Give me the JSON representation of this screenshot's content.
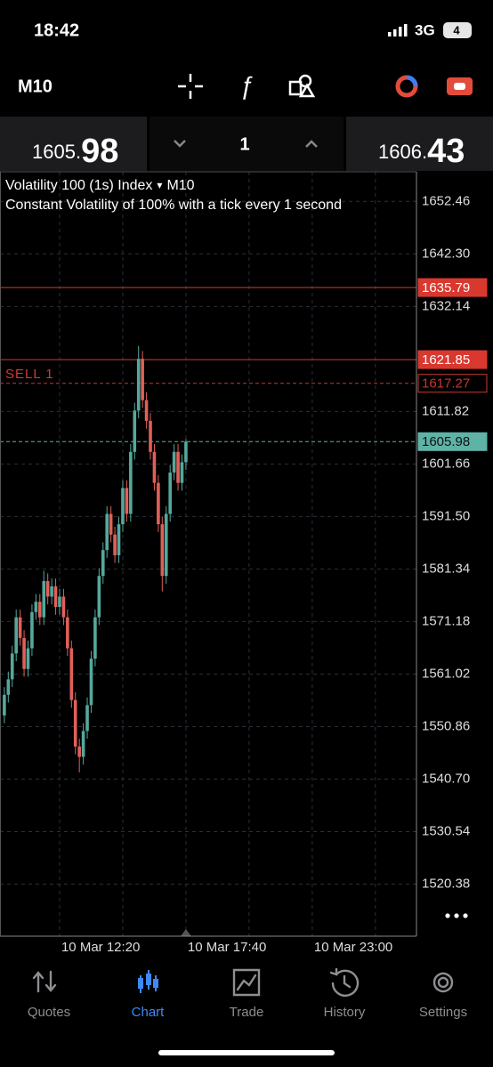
{
  "status_bar": {
    "time": "18:42",
    "network": "3G",
    "battery": "4"
  },
  "toolbar": {
    "timeframe": "M10"
  },
  "price_bar": {
    "bid_prefix": "1605.",
    "bid_suffix": "98",
    "volume": "1",
    "ask_prefix": "1606.",
    "ask_suffix": "43"
  },
  "chart_data": {
    "type": "candlestick",
    "title": "Volatility 100 (1s) Index",
    "title_marker": "▾",
    "timeframe": "M10",
    "subtitle": "Constant Volatility of 100% with a tick every 1 second",
    "up_color": "#55a89b",
    "down_color": "#e0605a",
    "open": [
      1553,
      1557,
      1560,
      1565,
      1572,
      1568,
      1562,
      1566,
      1573,
      1575,
      1572,
      1579,
      1576,
      1578,
      1574,
      1576,
      1572,
      1566,
      1556,
      1547,
      1545,
      1550,
      1555,
      1564,
      1572,
      1580,
      1585,
      1592,
      1588,
      1584,
      1590,
      1597,
      1592,
      1604,
      1612,
      1622,
      1614,
      1610,
      1604,
      1598,
      1590,
      1580,
      1592,
      1600,
      1604,
      1598,
      1602
    ],
    "high": [
      1558.5,
      1561.5,
      1566.5,
      1573.5,
      1573.5,
      1569.5,
      1567.5,
      1574.5,
      1576.5,
      1576.5,
      1581,
      1580.5,
      1579.5,
      1579.5,
      1577.5,
      1577.5,
      1573.5,
      1567.5,
      1557.5,
      1548.5,
      1551.5,
      1556.5,
      1565.5,
      1573.5,
      1581.5,
      1586.5,
      1593.5,
      1593.5,
      1589.5,
      1591.5,
      1598.5,
      1598.5,
      1605.5,
      1613.5,
      1624.5,
      1623.5,
      1615.5,
      1611.5,
      1605.5,
      1599.5,
      1591.5,
      1593.5,
      1601.5,
      1605.5,
      1605.5,
      1603.5,
      1606.5
    ],
    "low": [
      1551.5,
      1555.5,
      1558.5,
      1563.5,
      1566.5,
      1560.5,
      1560.5,
      1564.5,
      1571.5,
      1570.5,
      1570.5,
      1574.5,
      1574.5,
      1572.5,
      1572.5,
      1570.5,
      1564.5,
      1554.5,
      1545.5,
      1542,
      1543.5,
      1548.5,
      1553.5,
      1562.5,
      1570.5,
      1578.5,
      1583.5,
      1586.5,
      1582.5,
      1582.5,
      1588.5,
      1590.5,
      1590.5,
      1602.5,
      1610.5,
      1612.5,
      1608.5,
      1602.5,
      1596.5,
      1588.5,
      1577,
      1578.5,
      1590.5,
      1598.5,
      1596.5,
      1596.5,
      1600.5
    ],
    "close": [
      1557,
      1560,
      1565,
      1572,
      1568,
      1562,
      1566,
      1573,
      1575,
      1572,
      1579,
      1576,
      1578,
      1574,
      1576,
      1572,
      1566,
      1556,
      1547,
      1545,
      1550,
      1555,
      1564,
      1572,
      1580,
      1585,
      1592,
      1588,
      1584,
      1590,
      1597,
      1592,
      1604,
      1612,
      1622,
      1614,
      1610,
      1604,
      1598,
      1590,
      1580,
      1592,
      1600,
      1604,
      1598,
      1602,
      1605.98
    ],
    "xlim": [
      -1.1,
      104.4
    ],
    "xticks": [
      {
        "value": 14,
        "label": "10 Mar 12:20"
      },
      {
        "value": 46,
        "label": "10 Mar 17:40"
      },
      {
        "value": 78,
        "label": "10 Mar 23:00"
      }
    ],
    "ylim": [
      1510.31,
      1658.19
    ],
    "yticks": [
      1652.46,
      {
        "value": 1642.3,
        "label": "1642.30"
      },
      1632.14,
      1611.82,
      1601.66,
      {
        "value": 1591.5,
        "label": "1591.50"
      },
      1581.34,
      1571.18,
      1561.02,
      1550.86,
      {
        "value": 1540.7,
        "label": "1540.70"
      },
      1530.54,
      1520.38
    ],
    "grid": true,
    "price_lines": [
      {
        "value": 1635.79,
        "color": "#d9382f",
        "style": "solid",
        "box": "filled"
      },
      {
        "value": 1621.85,
        "color": "#d9382f",
        "style": "solid",
        "box": "filled",
        "text": "SELL 1"
      },
      {
        "value": 1617.27,
        "color": "#c8372f",
        "style": "dashed",
        "box": "outline"
      },
      {
        "value": 1605.98,
        "color": "#5fb3a6",
        "style": "dashed",
        "box": "filled"
      }
    ]
  },
  "tabs": [
    "Quotes",
    "Chart",
    "Trade",
    "History",
    "Settings"
  ],
  "active_tab": 1
}
